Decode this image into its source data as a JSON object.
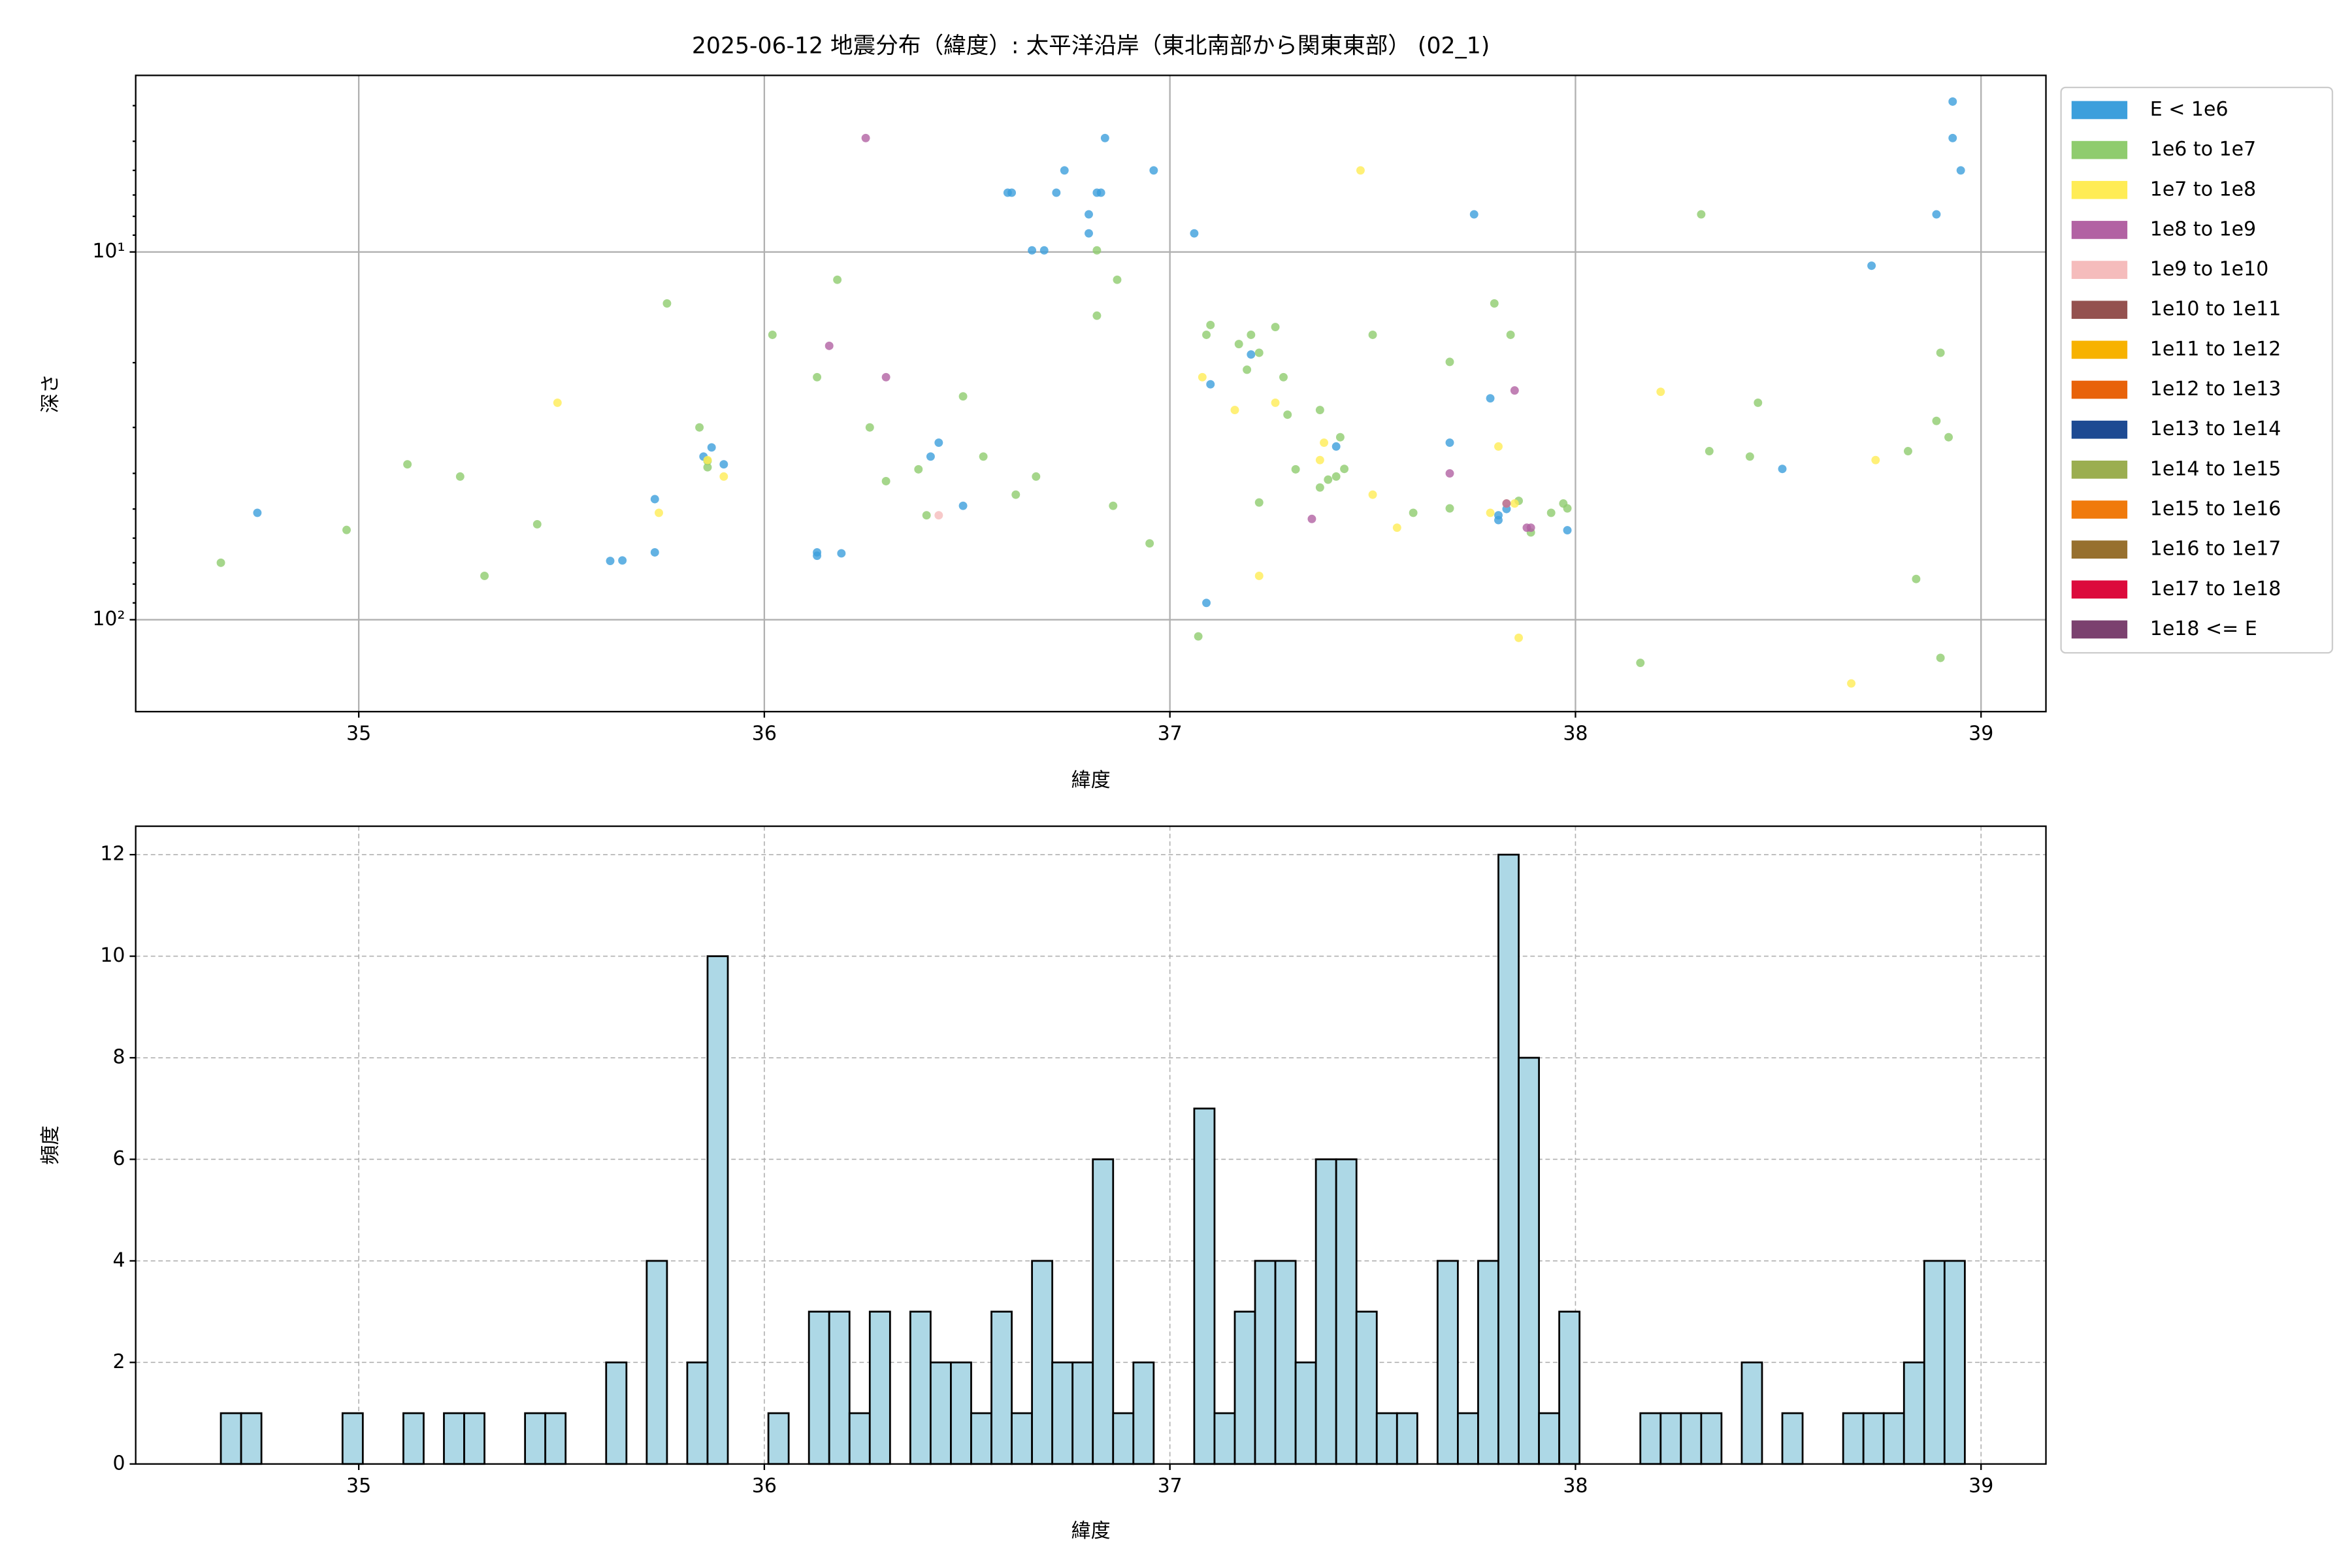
{
  "chart_data": [
    {
      "type": "scatter",
      "title": "2025-06-12 地震分布（緯度）: 太平洋沿岸（東北南部から関東東部） (02_1)",
      "xlabel": "緯度",
      "ylabel": "深さ",
      "xlim": [
        34.45,
        39.16
      ],
      "xticks": [
        35,
        36,
        37,
        38,
        39
      ],
      "yscale": "log",
      "yinvert": true,
      "ylim": [
        3.31,
        177.8
      ],
      "yticks": [
        {
          "value": 10,
          "label": "10¹"
        },
        {
          "value": 100,
          "label": "10²"
        }
      ],
      "yminorticks": [
        4,
        5,
        6,
        7,
        8,
        9,
        20,
        30,
        40,
        50,
        60,
        70,
        80,
        90
      ],
      "grid": true,
      "legend": "outside-right",
      "series": [
        {
          "name": "E < 1e6",
          "color": "#3c9fdc",
          "x": [
            34.75,
            35.62,
            35.65,
            35.73,
            35.73,
            35.85,
            35.87,
            35.9,
            36.13,
            36.13,
            36.19,
            36.41,
            36.43,
            36.49,
            36.6,
            36.61,
            36.66,
            36.69,
            36.72,
            36.74,
            36.8,
            36.8,
            36.82,
            36.83,
            36.84,
            36.96,
            37.06,
            37.1,
            37.09,
            37.2,
            37.41,
            37.69,
            37.75,
            37.79,
            37.81,
            37.81,
            37.83,
            37.98,
            38.51,
            38.73,
            38.89,
            38.93,
            38.93,
            38.95
          ],
          "y": [
            51.2,
            69.2,
            69,
            65.6,
            47,
            36,
            34,
            37.8,
            65.6,
            67,
            66,
            36,
            33,
            49,
            6.9,
            6.9,
            9.9,
            9.9,
            6.9,
            6.0,
            7.9,
            8.9,
            6.9,
            6.9,
            4.9,
            6.0,
            8.9,
            22.9,
            90,
            19.0,
            33.8,
            33,
            7.9,
            25,
            53.6,
            52,
            50,
            57.1,
            38.9,
            10.9,
            7.9,
            3.9,
            4.9,
            6.0
          ]
        },
        {
          "name": "1e6 to 1e7",
          "color": "#8fcc6e",
          "x": [
            34.66,
            34.97,
            35.12,
            35.25,
            35.31,
            35.44,
            35.76,
            35.84,
            35.86,
            35.86,
            36.02,
            36.13,
            36.18,
            36.26,
            36.3,
            36.38,
            36.4,
            36.49,
            36.54,
            36.62,
            36.67,
            36.82,
            36.82,
            36.87,
            36.86,
            36.95,
            37.07,
            37.09,
            37.1,
            37.17,
            37.19,
            37.2,
            37.22,
            37.22,
            37.26,
            37.28,
            37.29,
            37.31,
            37.37,
            37.37,
            37.39,
            37.42,
            37.41,
            37.43,
            37.5,
            37.6,
            37.69,
            37.69,
            37.8,
            37.84,
            37.86,
            37.89,
            37.94,
            37.97,
            37.98,
            38.16,
            38.31,
            38.33,
            38.43,
            38.45,
            38.82,
            38.84,
            38.9,
            38.89,
            38.92,
            38.9
          ],
          "y": [
            70,
            57,
            37.8,
            40.8,
            76,
            55,
            13.8,
            30,
            37,
            38.5,
            16.8,
            21.9,
            11.9,
            30,
            42,
            39,
            52,
            24.7,
            36,
            45.7,
            40.8,
            9.9,
            14.9,
            11.9,
            49,
            62,
            111,
            16.8,
            15.8,
            17.8,
            20.9,
            16.8,
            18.8,
            48,
            16,
            21.9,
            27.7,
            39,
            26.9,
            43.7,
            41.6,
            31.9,
            40.8,
            38.9,
            16.8,
            51.2,
            19.9,
            49.8,
            13.8,
            16.8,
            47.5,
            57.9,
            51.2,
            48.3,
            49.8,
            131,
            7.9,
            34.8,
            36,
            25.7,
            34.8,
            77.5,
            18.8,
            28.8,
            31.9,
            127
          ]
        },
        {
          "name": "1e7 to 1e8",
          "color": "#ffec55",
          "x": [
            35.49,
            35.74,
            35.86,
            35.9,
            37.08,
            37.16,
            37.22,
            37.26,
            37.37,
            37.38,
            37.47,
            37.5,
            37.56,
            37.79,
            37.81,
            37.83,
            37.85,
            37.86,
            38.21,
            38.74,
            38.68
          ],
          "y": [
            25.7,
            51.2,
            36.8,
            40.8,
            21.9,
            26.9,
            76,
            25.7,
            36.8,
            33,
            6.0,
            45.7,
            56.2,
            51.2,
            33.8,
            48.3,
            48.3,
            112,
            24,
            36.8,
            149
          ]
        },
        {
          "name": "1e8 to 1e9",
          "color": "#b262a3",
          "x": [
            36.25,
            36.16,
            36.3,
            37.35,
            37.69,
            37.85,
            37.83,
            37.88,
            37.89
          ],
          "y": [
            4.9,
            18,
            21.9,
            53.2,
            40,
            23.8,
            48.3,
            56.2,
            56.2
          ]
        },
        {
          "name": "1e9 to 1e10",
          "color": "#f5bcbc",
          "x": [
            36.43
          ],
          "y": [
            52
          ]
        },
        {
          "name": "1e10 to 1e11",
          "color": "#94514f",
          "x": [],
          "y": []
        },
        {
          "name": "1e11 to 1e12",
          "color": "#f7b200",
          "x": [],
          "y": []
        },
        {
          "name": "1e12 to 1e13",
          "color": "#e8620a",
          "x": [],
          "y": []
        },
        {
          "name": "1e13 to 1e14",
          "color": "#1d4a92",
          "x": [],
          "y": []
        },
        {
          "name": "1e14 to 1e15",
          "color": "#9bae50",
          "x": [],
          "y": []
        },
        {
          "name": "1e15 to 1e16",
          "color": "#f07a0c",
          "x": [],
          "y": []
        },
        {
          "name": "1e16 to 1e17",
          "color": "#97702e",
          "x": [],
          "y": []
        },
        {
          "name": "1e17 to 1e18",
          "color": "#dc0a3c",
          "x": [],
          "y": []
        },
        {
          "name": "1e18 <= E",
          "color": "#7b416f",
          "x": [],
          "y": []
        }
      ]
    },
    {
      "type": "histogram",
      "xlabel": "緯度",
      "ylabel": "頻度",
      "xlim": [
        34.45,
        39.16
      ],
      "xticks": [
        35,
        36,
        37,
        38,
        39
      ],
      "ylim": [
        0,
        12.56
      ],
      "yticks": [
        0,
        2,
        4,
        6,
        8,
        10,
        12
      ],
      "grid": "dashed",
      "color": "#add8e6",
      "edgecolor": "#000000",
      "bins": [
        34.66,
        34.71,
        34.76,
        34.81,
        34.86,
        34.91,
        34.96,
        35.01,
        35.06,
        35.11,
        35.16,
        35.21,
        35.26,
        35.31,
        35.36,
        35.41,
        35.46,
        35.51,
        35.56,
        35.61,
        35.66,
        35.71,
        35.76,
        35.81,
        35.86,
        35.91,
        35.96,
        36.01,
        36.06,
        36.11,
        36.16,
        36.21,
        36.26,
        36.31,
        36.36,
        36.41,
        36.46,
        36.51,
        36.56,
        36.61,
        36.66,
        36.71,
        36.76,
        36.81,
        36.86,
        36.91,
        36.96,
        37.01,
        37.06,
        37.11,
        37.16,
        37.21,
        37.26,
        37.31,
        37.36,
        37.41,
        37.46,
        37.51,
        37.56,
        37.61,
        37.66,
        37.71,
        37.76,
        37.81,
        37.86,
        37.91,
        37.96,
        38.01,
        38.06,
        38.11,
        38.16,
        38.21,
        38.26,
        38.31,
        38.36,
        38.41,
        38.46,
        38.51,
        38.56,
        38.61,
        38.66,
        38.71,
        38.76,
        38.81,
        38.86,
        38.91,
        38.96
      ],
      "values": [
        1,
        1,
        0,
        0,
        0,
        0,
        1,
        0,
        0,
        1,
        0,
        1,
        1,
        0,
        0,
        1,
        1,
        0,
        0,
        2,
        0,
        4,
        0,
        2,
        10,
        0,
        0,
        1,
        0,
        3,
        3,
        1,
        3,
        0,
        3,
        2,
        2,
        1,
        3,
        1,
        4,
        2,
        2,
        6,
        1,
        2,
        0,
        0,
        7,
        1,
        3,
        4,
        4,
        2,
        6,
        6,
        3,
        1,
        1,
        0,
        4,
        1,
        4,
        12,
        8,
        1,
        3,
        0,
        0,
        0,
        1,
        1,
        1,
        1,
        0,
        2,
        0,
        1,
        0,
        0,
        1,
        1,
        1,
        2,
        4,
        4
      ]
    }
  ]
}
